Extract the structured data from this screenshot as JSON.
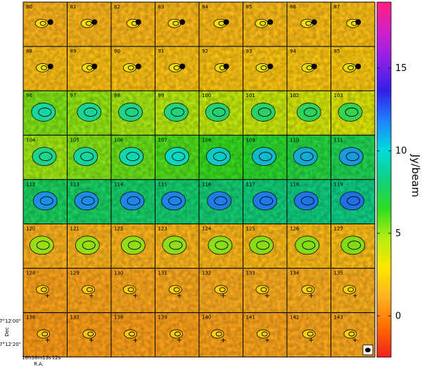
{
  "chart_data": {
    "type": "heatmap",
    "panels": {
      "rows": [
        [
          "80",
          "81",
          "82",
          "83",
          "84",
          "85",
          "86",
          "87"
        ],
        [
          "88",
          "89",
          "90",
          "91",
          "92",
          "93",
          "94",
          "95"
        ],
        [
          "96",
          "97",
          "98",
          "99",
          "100",
          "101",
          "102",
          "103"
        ],
        [
          "104",
          "105",
          "106",
          "107",
          "108",
          "109",
          "110",
          "111"
        ],
        [
          "112",
          "113",
          "114",
          "115",
          "116",
          "117",
          "118",
          "119"
        ],
        [
          "120",
          "121",
          "122",
          "123",
          "124",
          "125",
          "126",
          "127"
        ],
        [
          "128",
          "129",
          "130",
          "131",
          "132",
          "133",
          "134",
          "135"
        ],
        [
          "136",
          "137",
          "138",
          "139",
          "140",
          "141",
          "142",
          "143"
        ]
      ],
      "row_mean_intensity": [
        1.5,
        1.8,
        4.5,
        6.2,
        8.0,
        1.4,
        1.0,
        0.8
      ]
    },
    "colorbar": {
      "label": "Jy/beam",
      "range": [
        -2.5,
        19
      ],
      "ticks": [
        {
          "value": 0,
          "label": "0"
        },
        {
          "value": 5,
          "label": "5"
        },
        {
          "value": 10,
          "label": "10"
        },
        {
          "value": 15,
          "label": "15"
        }
      ],
      "colors": [
        "#f02020",
        "#ff6a00",
        "#ffb020",
        "#ffe600",
        "#b8ee10",
        "#30dd20",
        "#10d080",
        "#00dcdc",
        "#2080ff",
        "#3020e8",
        "#8a20e8",
        "#d020c8",
        "#ff2080"
      ]
    },
    "axes": {
      "dec_label": "Dec",
      "dec_ticks": [
        "-7°12'00\"",
        "-7°12'20\""
      ],
      "ra_label": "R.A.",
      "ra_ticks": [
        "18h38m13s",
        "12s"
      ]
    }
  }
}
